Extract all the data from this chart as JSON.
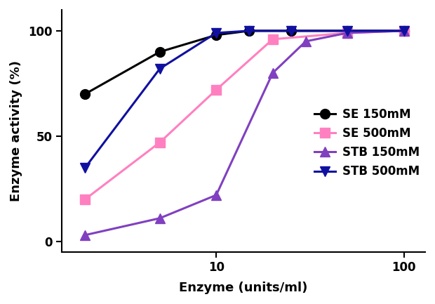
{
  "series": [
    {
      "label": "SE 150mM",
      "x": [
        2,
        5,
        10,
        15,
        25,
        50,
        100
      ],
      "y": [
        70,
        90,
        98,
        100,
        100,
        100,
        100
      ],
      "color": "#000000",
      "marker": "o",
      "markersize": 10,
      "linewidth": 2.2
    },
    {
      "label": "SE 500mM",
      "x": [
        2,
        5,
        10,
        20,
        50,
        100
      ],
      "y": [
        20,
        47,
        72,
        96,
        99,
        100
      ],
      "color": "#FF80C0",
      "marker": "s",
      "markersize": 10,
      "linewidth": 2.2
    },
    {
      "label": "STB 150mM",
      "x": [
        2,
        5,
        10,
        20,
        30,
        50,
        100
      ],
      "y": [
        3,
        11,
        22,
        80,
        95,
        99,
        100
      ],
      "color": "#8040C0",
      "marker": "^",
      "markersize": 10,
      "linewidth": 2.2
    },
    {
      "label": "STB 500mM",
      "x": [
        2,
        5,
        10,
        15,
        25,
        50,
        100
      ],
      "y": [
        35,
        82,
        99,
        100,
        100,
        100,
        100
      ],
      "color": "#1010A0",
      "marker": "v",
      "markersize": 10,
      "linewidth": 2.2
    }
  ],
  "xlabel": "Enzyme (units/ml)",
  "ylabel": "Enzyme activity (%)",
  "xlim_low": 1.5,
  "xlim_high": 130,
  "ylim": [
    -5,
    110
  ],
  "yticks": [
    0,
    50,
    100
  ],
  "xticks": [
    10,
    100
  ],
  "xticklabels": [
    "10",
    "100"
  ],
  "background_color": "#ffffff",
  "axis_label_fontsize": 13,
  "tick_fontsize": 12,
  "legend_fontsize": 12
}
